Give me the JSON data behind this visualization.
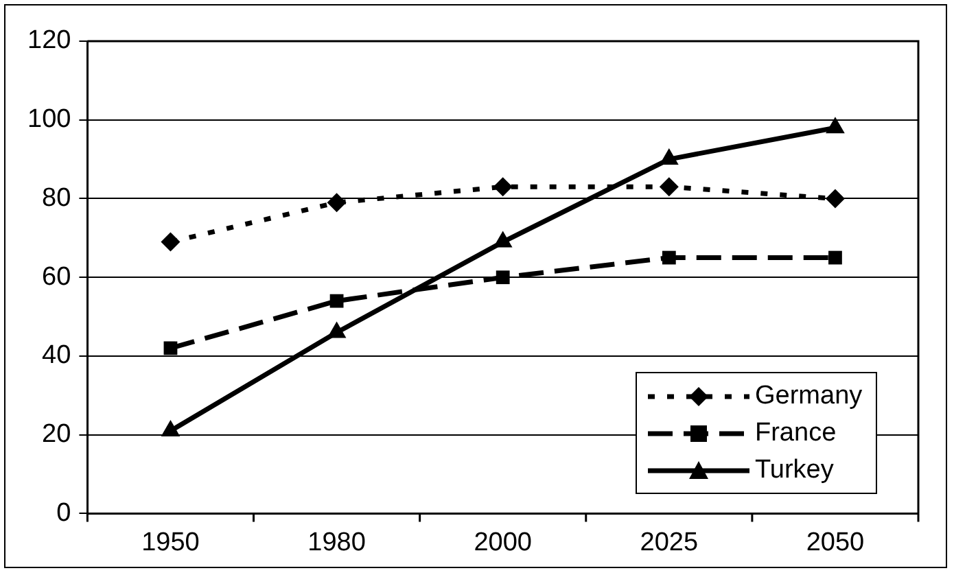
{
  "chart_data": {
    "type": "line",
    "categories": [
      "1950",
      "1980",
      "2000",
      "2025",
      "2050"
    ],
    "series": [
      {
        "name": "Germany",
        "color": "#000000",
        "marker": "diamond",
        "line_style": "dotted",
        "values": [
          69,
          79,
          83,
          83,
          80
        ]
      },
      {
        "name": "France",
        "color": "#000000",
        "marker": "square",
        "line_style": "dashed",
        "values": [
          42,
          54,
          60,
          65,
          65
        ]
      },
      {
        "name": "Turkey",
        "color": "#000000",
        "marker": "triangle",
        "line_style": "solid",
        "values": [
          21,
          46,
          69,
          90,
          98
        ]
      }
    ],
    "ylim": [
      0,
      120
    ],
    "yticks": [
      0,
      20,
      40,
      60,
      80,
      100,
      120
    ],
    "grid": "y",
    "legend": "bottom right"
  }
}
